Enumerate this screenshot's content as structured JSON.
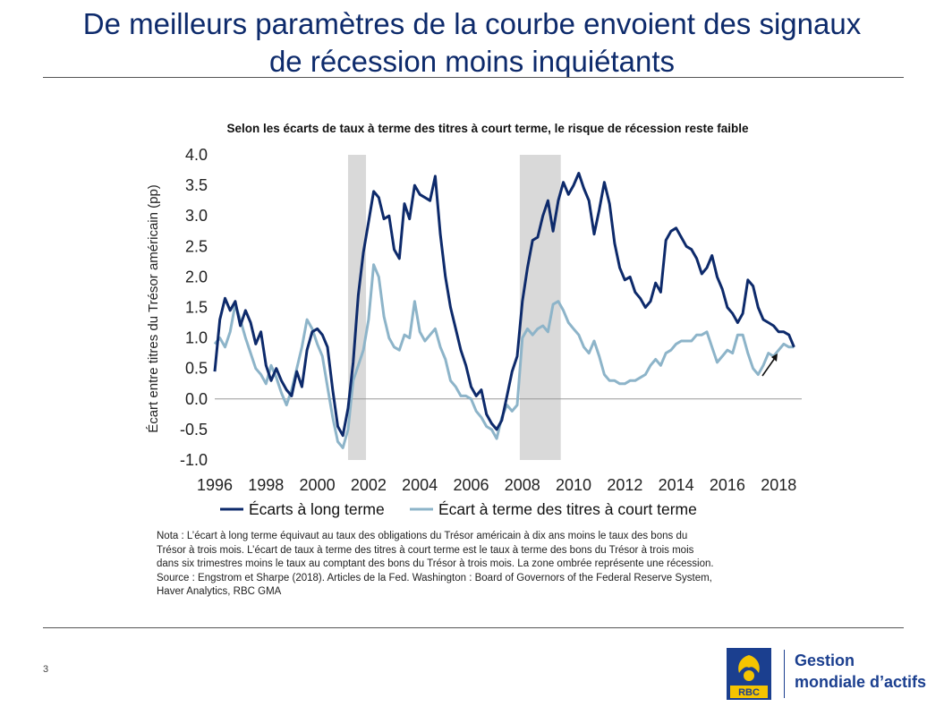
{
  "slide": {
    "title_line1": "De meilleurs paramètres de la courbe envoient des signaux",
    "title_line2": "de récession moins inquiétants",
    "page_number": "3",
    "brand_line1": "Gestion",
    "brand_line2": "mondiale d’actifs",
    "logo_text": "RBC"
  },
  "note_lines": [
    "Nota : L’écart à long terme équivaut au taux des obligations du Trésor américain à dix ans moins le taux des bons du",
    "Trésor à trois mois. L’écart de taux à terme des titres à court terme est le taux à terme des bons du Trésor à trois mois",
    "dans six trimestres moins le taux au comptant des bons du Trésor à trois mois. La zone ombrée représente une récession.",
    "Source : Engstrom et Sharpe (2018). Articles de la Fed. Washington : Board of Governors of the Federal Reserve System,",
    "Haver Analytics, RBC GMA"
  ],
  "chart_data": {
    "type": "line",
    "title": "Selon les écarts de taux à terme des titres à court terme, le risque de récession reste faible",
    "ylabel": "Écart entre titres du Trésor américain (pp)",
    "xlabel": "",
    "xlim": [
      1996,
      2018.9
    ],
    "ylim": [
      -1.0,
      4.0
    ],
    "x_ticks": [
      "1996",
      "1998",
      "2000",
      "2002",
      "2004",
      "2006",
      "2008",
      "2010",
      "2012",
      "2014",
      "2016",
      "2018"
    ],
    "y_ticks": [
      "4.0",
      "3.5",
      "3.0",
      "2.5",
      "2.0",
      "1.5",
      "1.0",
      "0.5",
      "0.0",
      "-0.5",
      "-1.0"
    ],
    "recessions": [
      [
        2001.2,
        2001.9
      ],
      [
        2007.9,
        2009.5
      ]
    ],
    "legend_position": "bottom",
    "colors": {
      "long": "#0d2a6b",
      "short": "#8db4c9",
      "shade": "#d9d9d9",
      "zero": "#999999"
    },
    "series": [
      {
        "name": "Écarts à long terme",
        "key": "long",
        "x": [
          1996.0,
          1996.2,
          1996.4,
          1996.6,
          1996.8,
          1997.0,
          1997.2,
          1997.4,
          1997.6,
          1997.8,
          1998.0,
          1998.2,
          1998.4,
          1998.6,
          1998.8,
          1999.0,
          1999.2,
          1999.4,
          1999.6,
          1999.8,
          2000.0,
          2000.2,
          2000.4,
          2000.6,
          2000.8,
          2001.0,
          2001.2,
          2001.4,
          2001.6,
          2001.8,
          2002.0,
          2002.2,
          2002.4,
          2002.6,
          2002.8,
          2003.0,
          2003.2,
          2003.4,
          2003.6,
          2003.8,
          2004.0,
          2004.2,
          2004.4,
          2004.6,
          2004.8,
          2005.0,
          2005.2,
          2005.4,
          2005.6,
          2005.8,
          2006.0,
          2006.2,
          2006.4,
          2006.6,
          2006.8,
          2007.0,
          2007.2,
          2007.4,
          2007.6,
          2007.8,
          2008.0,
          2008.2,
          2008.4,
          2008.6,
          2008.8,
          2009.0,
          2009.2,
          2009.4,
          2009.6,
          2009.8,
          2010.0,
          2010.2,
          2010.4,
          2010.6,
          2010.8,
          2011.0,
          2011.2,
          2011.4,
          2011.6,
          2011.8,
          2012.0,
          2012.2,
          2012.4,
          2012.6,
          2012.8,
          2013.0,
          2013.2,
          2013.4,
          2013.6,
          2013.8,
          2014.0,
          2014.2,
          2014.4,
          2014.6,
          2014.8,
          2015.0,
          2015.2,
          2015.4,
          2015.6,
          2015.8,
          2016.0,
          2016.2,
          2016.4,
          2016.6,
          2016.8,
          2017.0,
          2017.2,
          2017.4,
          2017.6,
          2017.8,
          2018.0,
          2018.2,
          2018.4,
          2018.6
        ],
        "values": [
          0.45,
          1.3,
          1.65,
          1.45,
          1.6,
          1.2,
          1.45,
          1.25,
          0.9,
          1.1,
          0.55,
          0.3,
          0.5,
          0.3,
          0.15,
          0.05,
          0.45,
          0.2,
          0.8,
          1.1,
          1.15,
          1.05,
          0.85,
          0.15,
          -0.45,
          -0.6,
          -0.15,
          0.6,
          1.7,
          2.4,
          2.9,
          3.4,
          3.3,
          2.95,
          3.0,
          2.45,
          2.3,
          3.2,
          2.95,
          3.5,
          3.35,
          3.3,
          3.25,
          3.65,
          2.7,
          2.0,
          1.5,
          1.15,
          0.8,
          0.55,
          0.2,
          0.05,
          0.15,
          -0.25,
          -0.4,
          -0.5,
          -0.35,
          0.05,
          0.45,
          0.7,
          1.6,
          2.15,
          2.6,
          2.65,
          3.0,
          3.25,
          2.75,
          3.25,
          3.55,
          3.35,
          3.5,
          3.7,
          3.45,
          3.25,
          2.7,
          3.1,
          3.55,
          3.2,
          2.55,
          2.15,
          1.95,
          2.0,
          1.75,
          1.65,
          1.5,
          1.6,
          1.9,
          1.75,
          2.6,
          2.75,
          2.8,
          2.65,
          2.5,
          2.45,
          2.3,
          2.05,
          2.15,
          2.35,
          2.0,
          1.8,
          1.5,
          1.4,
          1.25,
          1.4,
          1.95,
          1.85,
          1.5,
          1.3,
          1.25,
          1.2,
          1.1,
          1.1,
          1.05,
          0.85
        ]
      },
      {
        "name": "Écart à terme des titres à court terme",
        "key": "short",
        "x": [
          1996.0,
          1996.2,
          1996.4,
          1996.6,
          1996.8,
          1997.0,
          1997.2,
          1997.4,
          1997.6,
          1997.8,
          1998.0,
          1998.2,
          1998.4,
          1998.6,
          1998.8,
          1999.0,
          1999.2,
          1999.4,
          1999.6,
          1999.8,
          2000.0,
          2000.2,
          2000.4,
          2000.6,
          2000.8,
          2001.0,
          2001.2,
          2001.4,
          2001.6,
          2001.8,
          2002.0,
          2002.2,
          2002.4,
          2002.6,
          2002.8,
          2003.0,
          2003.2,
          2003.4,
          2003.6,
          2003.8,
          2004.0,
          2004.2,
          2004.4,
          2004.6,
          2004.8,
          2005.0,
          2005.2,
          2005.4,
          2005.6,
          2005.8,
          2006.0,
          2006.2,
          2006.4,
          2006.6,
          2006.8,
          2007.0,
          2007.2,
          2007.4,
          2007.6,
          2007.8,
          2008.0,
          2008.2,
          2008.4,
          2008.6,
          2008.8,
          2009.0,
          2009.2,
          2009.4,
          2009.6,
          2009.8,
          2010.0,
          2010.2,
          2010.4,
          2010.6,
          2010.8,
          2011.0,
          2011.2,
          2011.4,
          2011.6,
          2011.8,
          2012.0,
          2012.2,
          2012.4,
          2012.6,
          2012.8,
          2013.0,
          2013.2,
          2013.4,
          2013.6,
          2013.8,
          2014.0,
          2014.2,
          2014.4,
          2014.6,
          2014.8,
          2015.0,
          2015.2,
          2015.4,
          2015.6,
          2015.8,
          2016.0,
          2016.2,
          2016.4,
          2016.6,
          2016.8,
          2017.0,
          2017.2,
          2017.4,
          2017.6,
          2017.8,
          2018.0,
          2018.2,
          2018.4,
          2018.6
        ],
        "values": [
          0.9,
          1.0,
          0.85,
          1.1,
          1.55,
          1.3,
          1.0,
          0.75,
          0.5,
          0.4,
          0.25,
          0.55,
          0.35,
          0.1,
          -0.1,
          0.15,
          0.5,
          0.85,
          1.3,
          1.15,
          0.9,
          0.7,
          0.2,
          -0.3,
          -0.7,
          -0.8,
          -0.5,
          0.3,
          0.55,
          0.8,
          1.3,
          2.2,
          2.0,
          1.35,
          1.0,
          0.85,
          0.8,
          1.05,
          1.0,
          1.6,
          1.1,
          0.95,
          1.05,
          1.15,
          0.85,
          0.65,
          0.3,
          0.2,
          0.05,
          0.05,
          0.0,
          -0.2,
          -0.3,
          -0.45,
          -0.5,
          -0.65,
          -0.3,
          -0.1,
          -0.2,
          -0.1,
          1.0,
          1.15,
          1.05,
          1.15,
          1.2,
          1.1,
          1.55,
          1.6,
          1.45,
          1.25,
          1.15,
          1.05,
          0.85,
          0.75,
          0.95,
          0.7,
          0.4,
          0.3,
          0.3,
          0.25,
          0.25,
          0.3,
          0.3,
          0.35,
          0.4,
          0.55,
          0.65,
          0.55,
          0.75,
          0.8,
          0.9,
          0.95,
          0.95,
          0.95,
          1.05,
          1.05,
          1.1,
          0.85,
          0.6,
          0.7,
          0.8,
          0.75,
          1.05,
          1.05,
          0.75,
          0.5,
          0.4,
          0.55,
          0.75,
          0.7,
          0.8,
          0.9,
          0.85,
          0.85
        ]
      }
    ],
    "annotation": "arrow pointing to the latest values"
  }
}
